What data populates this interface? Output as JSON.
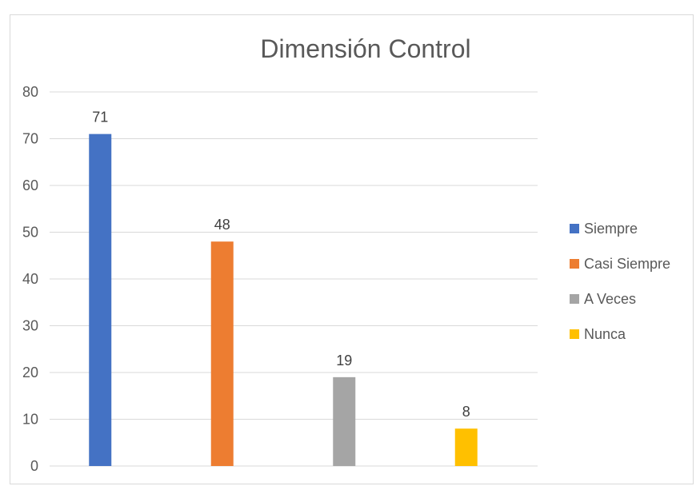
{
  "chart_data": {
    "type": "bar",
    "title": "Dimensión Control",
    "xlabel": "",
    "ylabel": "",
    "ylim": [
      0,
      80
    ],
    "yticks": [
      0,
      10,
      20,
      30,
      40,
      50,
      60,
      70,
      80
    ],
    "grid": true,
    "legend_position": "right",
    "series": [
      {
        "name": "Siempre",
        "value": 71,
        "color": "#4472C4"
      },
      {
        "name": "Casi Siempre",
        "value": 48,
        "color": "#ED7D31"
      },
      {
        "name": "A Veces",
        "value": 19,
        "color": "#A5A5A5"
      },
      {
        "name": "Nunca",
        "value": 8,
        "color": "#FFC000"
      }
    ]
  }
}
